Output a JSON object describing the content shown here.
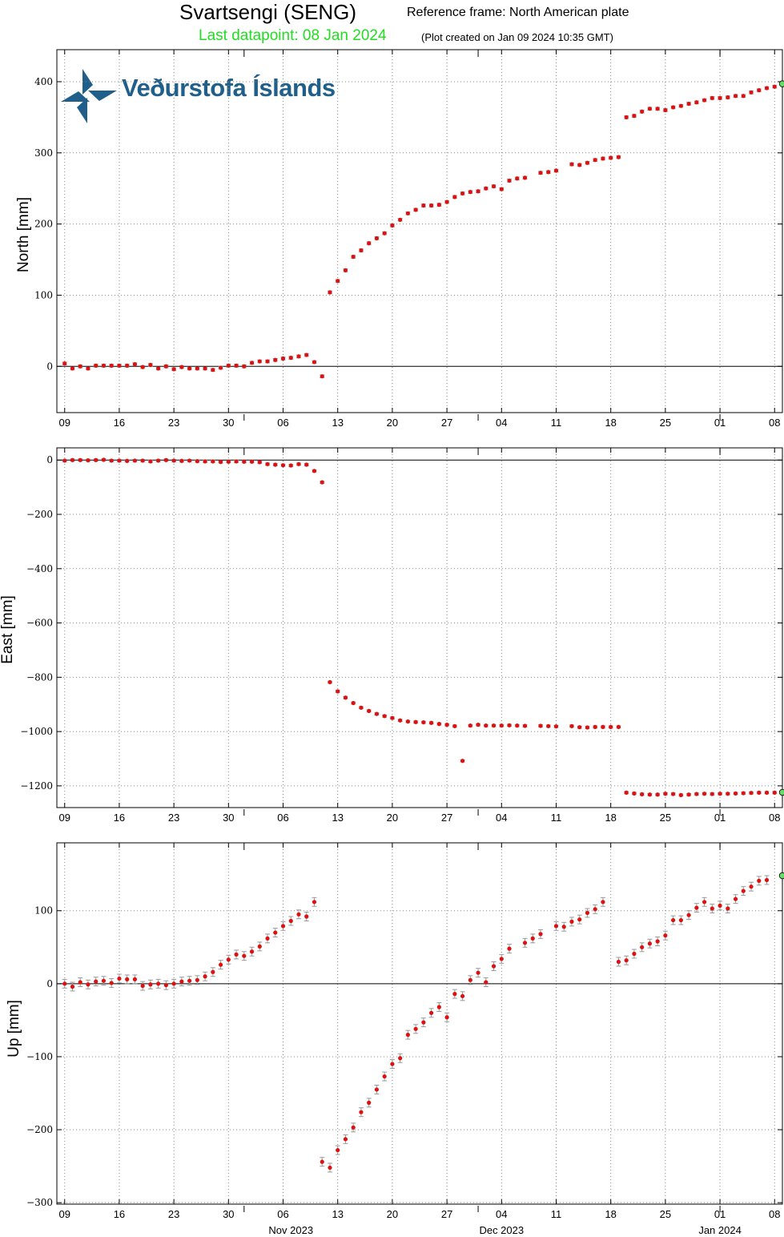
{
  "header": {
    "station": "Svartsengi (SENG)",
    "reference_frame": "Reference frame: North American plate",
    "last_datapoint": "Last datapoint: 08 Jan 2024",
    "plot_created": "(Plot created on Jan 09 2024 10:35 GMT)"
  },
  "logo": {
    "text": "Veðurstofa Íslands",
    "icon": "vedurstofa-logo-icon",
    "color": "#1f5f8a"
  },
  "colors": {
    "points": "#dd1111",
    "last_point": "#66dd66",
    "errorbars": "#999999",
    "grid": "#888888",
    "zero_line": "#000000"
  },
  "x_axis": {
    "start": "2023-10-08",
    "end": "2024-01-09",
    "tick_dates": [
      "2023-10-09",
      "2023-10-16",
      "2023-10-23",
      "2023-10-30",
      "2023-11-06",
      "2023-11-13",
      "2023-11-20",
      "2023-11-27",
      "2023-12-04",
      "2023-12-11",
      "2023-12-18",
      "2023-12-25",
      "2024-01-01",
      "2024-01-08"
    ],
    "tick_labels": [
      "09",
      "16",
      "23",
      "30",
      "06",
      "13",
      "20",
      "27",
      "04",
      "11",
      "18",
      "25",
      "01",
      "08"
    ],
    "month_starts": [
      "2023-11-01",
      "2023-12-01",
      "2024-01-01"
    ],
    "month_labels": [
      {
        "label": "Nov 2023",
        "date": "2023-11-07"
      },
      {
        "label": "Dec 2023",
        "date": "2023-12-04"
      },
      {
        "label": "Jan 2024",
        "date": "2024-01-01"
      }
    ]
  },
  "chart_data": [
    {
      "type": "scatter",
      "ylabel": "North [mm]",
      "ylim": [
        -65,
        445
      ],
      "yticks": [
        0,
        100,
        200,
        300,
        400
      ],
      "ytick_labels": [
        "0",
        "100",
        "200",
        "300",
        "400"
      ],
      "grid": true,
      "error": 2,
      "points": [
        [
          "2023-10-09",
          4
        ],
        [
          "2023-10-10",
          -3
        ],
        [
          "2023-10-11",
          0
        ],
        [
          "2023-10-12",
          -3
        ],
        [
          "2023-10-13",
          1
        ],
        [
          "2023-10-14",
          1
        ],
        [
          "2023-10-15",
          1
        ],
        [
          "2023-10-16",
          1
        ],
        [
          "2023-10-17",
          1
        ],
        [
          "2023-10-18",
          3
        ],
        [
          "2023-10-19",
          -1
        ],
        [
          "2023-10-20",
          2
        ],
        [
          "2023-10-21",
          -3
        ],
        [
          "2023-10-22",
          0
        ],
        [
          "2023-10-23",
          -4
        ],
        [
          "2023-10-24",
          -1
        ],
        [
          "2023-10-25",
          -3
        ],
        [
          "2023-10-26",
          -3
        ],
        [
          "2023-10-27",
          -3
        ],
        [
          "2023-10-28",
          -5
        ],
        [
          "2023-10-29",
          -2
        ],
        [
          "2023-10-30",
          1
        ],
        [
          "2023-10-31",
          1
        ],
        [
          "2023-11-01",
          0
        ],
        [
          "2023-11-02",
          5
        ],
        [
          "2023-11-03",
          7
        ],
        [
          "2023-11-04",
          7
        ],
        [
          "2023-11-05",
          9
        ],
        [
          "2023-11-06",
          11
        ],
        [
          "2023-11-07",
          12
        ],
        [
          "2023-11-08",
          14
        ],
        [
          "2023-11-09",
          16
        ],
        [
          "2023-11-10",
          6
        ],
        [
          "2023-11-11",
          -14
        ],
        [
          "2023-11-12",
          104
        ],
        [
          "2023-11-13",
          120
        ],
        [
          "2023-11-14",
          135
        ],
        [
          "2023-11-15",
          154
        ],
        [
          "2023-11-16",
          163
        ],
        [
          "2023-11-17",
          173
        ],
        [
          "2023-11-18",
          180
        ],
        [
          "2023-11-19",
          187
        ],
        [
          "2023-11-20",
          198
        ],
        [
          "2023-11-21",
          206
        ],
        [
          "2023-11-22",
          215
        ],
        [
          "2023-11-23",
          220
        ],
        [
          "2023-11-24",
          226
        ],
        [
          "2023-11-25",
          226
        ],
        [
          "2023-11-26",
          227
        ],
        [
          "2023-11-27",
          231
        ],
        [
          "2023-11-28",
          238
        ],
        [
          "2023-11-29",
          243
        ],
        [
          "2023-11-30",
          245
        ],
        [
          "2023-12-01",
          246
        ],
        [
          "2023-12-02",
          250
        ],
        [
          "2023-12-03",
          253
        ],
        [
          "2023-12-04",
          249
        ],
        [
          "2023-12-05",
          261
        ],
        [
          "2023-12-06",
          264
        ],
        [
          "2023-12-07",
          265
        ],
        [
          "2023-12-09",
          272
        ],
        [
          "2023-12-10",
          273
        ],
        [
          "2023-12-11",
          275
        ],
        [
          "2023-12-13",
          284
        ],
        [
          "2023-12-14",
          283
        ],
        [
          "2023-12-15",
          286
        ],
        [
          "2023-12-16",
          290
        ],
        [
          "2023-12-17",
          292
        ],
        [
          "2023-12-18",
          293
        ],
        [
          "2023-12-19",
          294
        ],
        [
          "2023-12-20",
          350
        ],
        [
          "2023-12-21",
          352
        ],
        [
          "2023-12-22",
          358
        ],
        [
          "2023-12-23",
          362
        ],
        [
          "2023-12-24",
          362
        ],
        [
          "2023-12-25",
          360
        ],
        [
          "2023-12-26",
          364
        ],
        [
          "2023-12-27",
          366
        ],
        [
          "2023-12-28",
          369
        ],
        [
          "2023-12-29",
          371
        ],
        [
          "2023-12-30",
          374
        ],
        [
          "2023-12-31",
          377
        ],
        [
          "2024-01-01",
          377
        ],
        [
          "2024-01-02",
          378
        ],
        [
          "2024-01-03",
          380
        ],
        [
          "2024-01-04",
          380
        ],
        [
          "2024-01-05",
          385
        ],
        [
          "2024-01-06",
          388
        ],
        [
          "2024-01-07",
          391
        ],
        [
          "2024-01-08",
          393
        ]
      ],
      "last_point": [
        "2024-01-09",
        397
      ]
    },
    {
      "type": "scatter",
      "ylabel": "East [mm]",
      "ylim": [
        -1280,
        45
      ],
      "yticks": [
        0,
        -200,
        -400,
        -600,
        -800,
        -1000,
        -1200
      ],
      "ytick_labels": [
        "0",
        "−200",
        "−400",
        "−600",
        "−800",
        "−1000",
        "−1200"
      ],
      "grid": true,
      "error": 4,
      "points": [
        [
          "2023-10-09",
          -2
        ],
        [
          "2023-10-10",
          0
        ],
        [
          "2023-10-11",
          0
        ],
        [
          "2023-10-12",
          -1
        ],
        [
          "2023-10-13",
          0
        ],
        [
          "2023-10-14",
          1
        ],
        [
          "2023-10-15",
          -2
        ],
        [
          "2023-10-16",
          -2
        ],
        [
          "2023-10-17",
          -3
        ],
        [
          "2023-10-18",
          -2
        ],
        [
          "2023-10-19",
          -2
        ],
        [
          "2023-10-20",
          -5
        ],
        [
          "2023-10-21",
          -2
        ],
        [
          "2023-10-22",
          0
        ],
        [
          "2023-10-23",
          -2
        ],
        [
          "2023-10-24",
          -3
        ],
        [
          "2023-10-25",
          -2
        ],
        [
          "2023-10-26",
          -4
        ],
        [
          "2023-10-27",
          -5
        ],
        [
          "2023-10-28",
          -5
        ],
        [
          "2023-10-29",
          -7
        ],
        [
          "2023-10-30",
          -6
        ],
        [
          "2023-10-31",
          -5
        ],
        [
          "2023-11-01",
          -6
        ],
        [
          "2023-11-02",
          -6
        ],
        [
          "2023-11-03",
          -8
        ],
        [
          "2023-11-04",
          -15
        ],
        [
          "2023-11-05",
          -17
        ],
        [
          "2023-11-06",
          -19
        ],
        [
          "2023-11-07",
          -20
        ],
        [
          "2023-11-08",
          -15
        ],
        [
          "2023-11-09",
          -17
        ],
        [
          "2023-11-10",
          -40
        ],
        [
          "2023-11-11",
          -82
        ],
        [
          "2023-11-12",
          -818
        ],
        [
          "2023-11-13",
          -852
        ],
        [
          "2023-11-14",
          -875
        ],
        [
          "2023-11-15",
          -895
        ],
        [
          "2023-11-16",
          -912
        ],
        [
          "2023-11-17",
          -924
        ],
        [
          "2023-11-18",
          -935
        ],
        [
          "2023-11-19",
          -943
        ],
        [
          "2023-11-20",
          -950
        ],
        [
          "2023-11-21",
          -959
        ],
        [
          "2023-11-22",
          -963
        ],
        [
          "2023-11-23",
          -965
        ],
        [
          "2023-11-24",
          -966
        ],
        [
          "2023-11-25",
          -968
        ],
        [
          "2023-11-26",
          -972
        ],
        [
          "2023-11-27",
          -975
        ],
        [
          "2023-11-28",
          -980
        ],
        [
          "2023-11-29",
          -1108
        ],
        [
          "2023-11-30",
          -978
        ],
        [
          "2023-12-01",
          -975
        ],
        [
          "2023-12-02",
          -978
        ],
        [
          "2023-12-03",
          -978
        ],
        [
          "2023-12-04",
          -978
        ],
        [
          "2023-12-05",
          -977
        ],
        [
          "2023-12-06",
          -978
        ],
        [
          "2023-12-07",
          -979
        ],
        [
          "2023-12-09",
          -979
        ],
        [
          "2023-12-10",
          -980
        ],
        [
          "2023-12-11",
          -981
        ],
        [
          "2023-12-13",
          -980
        ],
        [
          "2023-12-14",
          -984
        ],
        [
          "2023-12-15",
          -985
        ],
        [
          "2023-12-16",
          -983
        ],
        [
          "2023-12-17",
          -983
        ],
        [
          "2023-12-18",
          -983
        ],
        [
          "2023-12-19",
          -983
        ],
        [
          "2023-12-20",
          -1225
        ],
        [
          "2023-12-21",
          -1228
        ],
        [
          "2023-12-22",
          -1231
        ],
        [
          "2023-12-23",
          -1232
        ],
        [
          "2023-12-24",
          -1232
        ],
        [
          "2023-12-25",
          -1229
        ],
        [
          "2023-12-26",
          -1230
        ],
        [
          "2023-12-27",
          -1234
        ],
        [
          "2023-12-28",
          -1232
        ],
        [
          "2023-12-29",
          -1230
        ],
        [
          "2023-12-30",
          -1229
        ],
        [
          "2023-12-31",
          -1230
        ],
        [
          "2024-01-01",
          -1229
        ],
        [
          "2024-01-02",
          -1229
        ],
        [
          "2024-01-03",
          -1228
        ],
        [
          "2024-01-04",
          -1227
        ],
        [
          "2024-01-05",
          -1226
        ],
        [
          "2024-01-06",
          -1225
        ],
        [
          "2024-01-07",
          -1225
        ],
        [
          "2024-01-08",
          -1225
        ]
      ],
      "last_point": [
        "2024-01-09",
        -1224
      ]
    },
    {
      "type": "scatter",
      "ylabel": "Up [mm]",
      "ylim": [
        -302,
        193
      ],
      "yticks": [
        100,
        0,
        -100,
        -200,
        -300
      ],
      "ytick_labels": [
        "100",
        "0",
        "−100",
        "−200",
        "−300"
      ],
      "grid": true,
      "error": 6,
      "points": [
        [
          "2023-10-09",
          0
        ],
        [
          "2023-10-10",
          -4
        ],
        [
          "2023-10-11",
          2
        ],
        [
          "2023-10-12",
          -1
        ],
        [
          "2023-10-13",
          3
        ],
        [
          "2023-10-14",
          4
        ],
        [
          "2023-10-15",
          1
        ],
        [
          "2023-10-16",
          7
        ],
        [
          "2023-10-17",
          6
        ],
        [
          "2023-10-18",
          6
        ],
        [
          "2023-10-19",
          -3
        ],
        [
          "2023-10-20",
          -1
        ],
        [
          "2023-10-21",
          0
        ],
        [
          "2023-10-22",
          -2
        ],
        [
          "2023-10-23",
          0
        ],
        [
          "2023-10-24",
          3
        ],
        [
          "2023-10-25",
          4
        ],
        [
          "2023-10-26",
          5
        ],
        [
          "2023-10-27",
          10
        ],
        [
          "2023-10-28",
          16
        ],
        [
          "2023-10-29",
          26
        ],
        [
          "2023-10-30",
          33
        ],
        [
          "2023-10-31",
          40
        ],
        [
          "2023-11-01",
          38
        ],
        [
          "2023-11-02",
          44
        ],
        [
          "2023-11-03",
          51
        ],
        [
          "2023-11-04",
          62
        ],
        [
          "2023-11-05",
          70
        ],
        [
          "2023-11-06",
          79
        ],
        [
          "2023-11-07",
          86
        ],
        [
          "2023-11-08",
          95
        ],
        [
          "2023-11-09",
          92
        ],
        [
          "2023-11-10",
          112
        ],
        [
          "2023-11-11",
          -244
        ],
        [
          "2023-11-12",
          -252
        ],
        [
          "2023-11-13",
          -228
        ],
        [
          "2023-11-14",
          -213
        ],
        [
          "2023-11-15",
          -197
        ],
        [
          "2023-11-16",
          -176
        ],
        [
          "2023-11-17",
          -163
        ],
        [
          "2023-11-18",
          -145
        ],
        [
          "2023-11-19",
          -127
        ],
        [
          "2023-11-20",
          -110
        ],
        [
          "2023-11-21",
          -102
        ],
        [
          "2023-11-22",
          -70
        ],
        [
          "2023-11-23",
          -62
        ],
        [
          "2023-11-24",
          -53
        ],
        [
          "2023-11-25",
          -40
        ],
        [
          "2023-11-26",
          -32
        ],
        [
          "2023-11-27",
          -46
        ],
        [
          "2023-11-28",
          -14
        ],
        [
          "2023-11-29",
          -17
        ],
        [
          "2023-11-30",
          5
        ],
        [
          "2023-12-01",
          15
        ],
        [
          "2023-12-02",
          2
        ],
        [
          "2023-12-03",
          24
        ],
        [
          "2023-12-04",
          34
        ],
        [
          "2023-12-05",
          48
        ],
        [
          "2023-12-07",
          56
        ],
        [
          "2023-12-08",
          62
        ],
        [
          "2023-12-09",
          68
        ],
        [
          "2023-12-11",
          79
        ],
        [
          "2023-12-12",
          78
        ],
        [
          "2023-12-13",
          85
        ],
        [
          "2023-12-14",
          88
        ],
        [
          "2023-12-15",
          97
        ],
        [
          "2023-12-16",
          102
        ],
        [
          "2023-12-17",
          112
        ],
        [
          "2023-12-19",
          30
        ],
        [
          "2023-12-20",
          32
        ],
        [
          "2023-12-21",
          41
        ],
        [
          "2023-12-22",
          50
        ],
        [
          "2023-12-23",
          55
        ],
        [
          "2023-12-24",
          58
        ],
        [
          "2023-12-25",
          66
        ],
        [
          "2023-12-26",
          87
        ],
        [
          "2023-12-27",
          87
        ],
        [
          "2023-12-28",
          94
        ],
        [
          "2023-12-29",
          104
        ],
        [
          "2023-12-30",
          112
        ],
        [
          "2023-12-31",
          103
        ],
        [
          "2024-01-01",
          107
        ],
        [
          "2024-01-02",
          103
        ],
        [
          "2024-01-03",
          116
        ],
        [
          "2024-01-04",
          127
        ],
        [
          "2024-01-05",
          133
        ],
        [
          "2024-01-06",
          141
        ],
        [
          "2024-01-07",
          142
        ]
      ],
      "last_point": [
        "2024-01-09",
        148
      ]
    }
  ]
}
